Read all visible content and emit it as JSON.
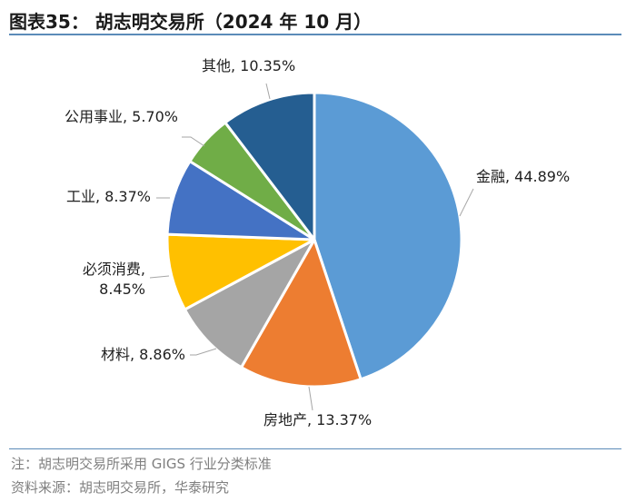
{
  "header": {
    "title": "图表35：  胡志明交易所（2024 年 10 月）"
  },
  "footer": {
    "note": "注：胡志明交易所采用 GIGS 行业分类标准",
    "source": "资料来源：胡志明交易所，华泰研究"
  },
  "chart_data": {
    "type": "pie",
    "title": "",
    "unit": "%",
    "slices": [
      {
        "name": "金融",
        "value": 44.89,
        "label": "金融, 44.89%",
        "color": "#5b9bd5"
      },
      {
        "name": "房地产",
        "value": 13.37,
        "label": "房地产, 13.37%",
        "color": "#ed7d31"
      },
      {
        "name": "材料",
        "value": 8.86,
        "label": "材料, 8.86%",
        "color": "#a5a5a5"
      },
      {
        "name": "必须消费",
        "value": 8.45,
        "label_lines": [
          "必须消费,",
          "8.45%"
        ],
        "color": "#ffc000"
      },
      {
        "name": "工业",
        "value": 8.37,
        "label": "工业, 8.37%",
        "color": "#4472c4"
      },
      {
        "name": "公用事业",
        "value": 5.7,
        "label": "公用事业, 5.70%",
        "color": "#70ad47"
      },
      {
        "name": "其他",
        "value": 10.35,
        "label": "其他, 10.35%",
        "color": "#255e91"
      }
    ]
  }
}
